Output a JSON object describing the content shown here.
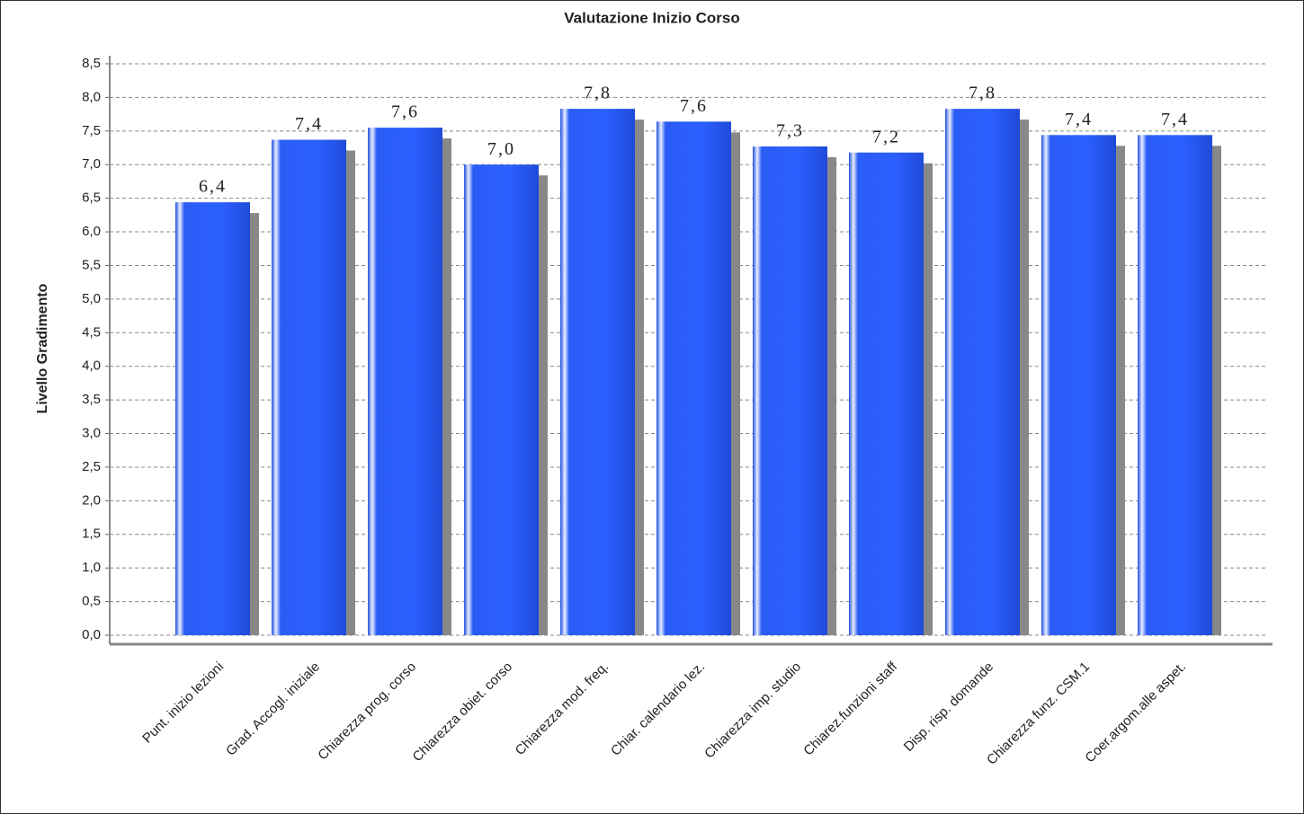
{
  "chart_data": {
    "type": "bar",
    "title": "Valutazione Inizio Corso",
    "y_label": "Livello Gradimento",
    "categories": [
      "Punt. inizio lezioni",
      "Grad. Accogl. iniziale",
      "Chiarezza prog. corso",
      "Chiarezza obiet. corso",
      "Chiarezza mod. freq.",
      "Chiar. calendario lez.",
      "Chiarezza imp. studio",
      "Chiarez.funzioni staff",
      "Disp. risp. domande",
      "Chiarezza funz. CSM.1",
      "Coer.argom.alle aspet."
    ],
    "values": [
      6.44,
      7.37,
      7.55,
      7.0,
      7.83,
      7.64,
      7.27,
      7.18,
      7.83,
      7.44,
      7.44
    ],
    "value_labels": [
      "6,4",
      "7,4",
      "7,6",
      "7,0",
      "7,8",
      "7,6",
      "7,3",
      "7,2",
      "7,8",
      "7,4",
      "7,4"
    ],
    "color": "#2257f0",
    "ylim": [
      0,
      8.5
    ],
    "yticks": [
      {
        "value": 0,
        "label": "0,0"
      },
      {
        "value": 0.5,
        "label": "0,5"
      },
      {
        "value": 1,
        "label": "1,0"
      },
      {
        "value": 1.5,
        "label": "1,5"
      },
      {
        "value": 2,
        "label": "2,0"
      },
      {
        "value": 2.5,
        "label": "2,5"
      },
      {
        "value": 3,
        "label": "3,0"
      },
      {
        "value": 3.5,
        "label": "3,5"
      },
      {
        "value": 4,
        "label": "4,0"
      },
      {
        "value": 4.5,
        "label": "4,5"
      },
      {
        "value": 5,
        "label": "5,0"
      },
      {
        "value": 5.5,
        "label": "5,5"
      },
      {
        "value": 6,
        "label": "6,0"
      },
      {
        "value": 6.5,
        "label": "6,5"
      },
      {
        "value": 7,
        "label": "7,0"
      },
      {
        "value": 7.5,
        "label": "7,5"
      },
      {
        "value": 8,
        "label": "8,0"
      },
      {
        "value": 8.5,
        "label": "8,5"
      }
    ],
    "grid": true
  }
}
